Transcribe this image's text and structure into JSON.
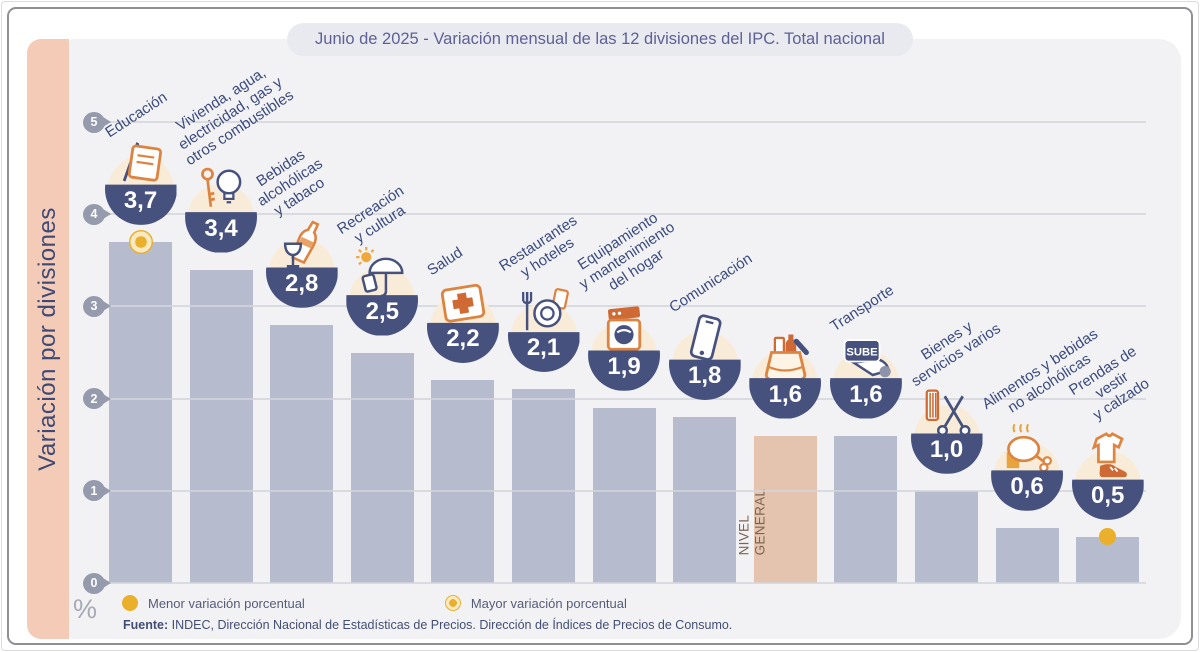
{
  "title": "Junio de 2025 - Variación mensual de las 12 divisiones del IPC. Total nacional",
  "sidebar": {
    "label": "Variación por divisiones"
  },
  "axis": {
    "ticks": [
      "5",
      "4",
      "3",
      "2",
      "1",
      "0"
    ],
    "unit_label": "%"
  },
  "legend": [
    {
      "marker": "solid-dot",
      "label": "Menor variación porcentual"
    },
    {
      "marker": "ring-dot",
      "label": "Mayor variación porcentual"
    }
  ],
  "source": {
    "prefix": "Fuente:",
    "text": " INDEC, Dirección Nacional de Estadísticas de Precios. Dirección de Índices de Precios de Consumo."
  },
  "colors": {
    "sidebar": "#f4cbb6",
    "chart_background": "#f2f2f5",
    "bar": "#b6bccd",
    "nivel_general_bar": "#e5c4af",
    "badge_bowl_navy": "#46517e",
    "label_navy": "#3b4b7e",
    "highlight_yellow": "#eaaf2b",
    "icon_orange": "#dd8440",
    "title_text": "#5f6096"
  },
  "chart_data": {
    "type": "bar",
    "title": "Junio de 2025 - Variación mensual de las 12 divisiones del IPC. Total nacional",
    "xlabel": "",
    "ylabel": "%",
    "ylim": [
      0,
      5
    ],
    "grid": true,
    "categories": [
      "Educación",
      "Vivienda, agua, electricidad, gas y otros combustibles",
      "Bebidas alcohólicas y tabaco",
      "Recreación y cultura",
      "Salud",
      "Restaurantes y hoteles",
      "Equipamiento y mantenimiento del hogar",
      "Comunicación",
      "Nivel general",
      "Transporte",
      "Bienes y servicios varios",
      "Alimentos y bebidas no alcohólicas",
      "Prendas de vestir y calzado"
    ],
    "values": [
      3.7,
      3.4,
      2.8,
      2.5,
      2.2,
      2.1,
      1.9,
      1.8,
      1.6,
      1.6,
      1.0,
      0.6,
      0.5
    ],
    "bars": [
      {
        "slug": "educacion",
        "label_lines": [
          "Educación"
        ],
        "value": 3.7,
        "display": "3,7",
        "icon": "notebook-pencil-icon",
        "marker": "mayor"
      },
      {
        "slug": "vivienda-agua-electricidad-gas",
        "label_lines": [
          "Vivienda, agua,",
          "electricidad, gas y",
          "otros combustibles"
        ],
        "value": 3.4,
        "display": "3,4",
        "icon": "lightbulb-key-icon",
        "marker": null
      },
      {
        "slug": "bebidas-alcoholicas-tabaco",
        "label_lines": [
          "Bebidas",
          "alcohólicas",
          "y tabaco"
        ],
        "value": 2.8,
        "display": "2,8",
        "icon": "wine-bottle-glass-icon",
        "marker": null
      },
      {
        "slug": "recreacion-cultura",
        "label_lines": [
          "Recreación",
          "y cultura"
        ],
        "value": 2.5,
        "display": "2,5",
        "icon": "umbrella-sun-icon",
        "marker": null
      },
      {
        "slug": "salud",
        "label_lines": [
          "Salud"
        ],
        "value": 2.2,
        "display": "2,2",
        "icon": "first-aid-kit-icon",
        "marker": null
      },
      {
        "slug": "restaurantes-hoteles",
        "label_lines": [
          "Restaurantes",
          "y hoteles"
        ],
        "value": 2.1,
        "display": "2,1",
        "icon": "fork-plate-icon",
        "marker": null
      },
      {
        "slug": "equipamiento-hogar",
        "label_lines": [
          "Equipamiento",
          "y mantenimiento",
          "del hogar"
        ],
        "value": 1.9,
        "display": "1,9",
        "icon": "washing-machine-icon",
        "marker": null
      },
      {
        "slug": "comunicacion",
        "label_lines": [
          "Comunicación"
        ],
        "value": 1.8,
        "display": "1,8",
        "icon": "smartphone-icon",
        "marker": null
      },
      {
        "slug": "nivel-general",
        "label_lines": [],
        "bar_text": "NIVEL\nGENERAL",
        "value": 1.6,
        "display": "1,6",
        "icon": "grocery-bag-icon",
        "marker": null,
        "highlight_bar": true
      },
      {
        "slug": "transporte",
        "label_lines": [
          "Transporte"
        ],
        "value": 1.6,
        "display": "1,6",
        "icon": "sube-card-icon",
        "marker": null
      },
      {
        "slug": "bienes-servicios-varios",
        "label_lines": [
          "Bienes y",
          "servicios varios"
        ],
        "value": 1.0,
        "display": "1,0",
        "icon": "comb-scissors-icon",
        "marker": null
      },
      {
        "slug": "alimentos-bebidas-no-alcoholicas",
        "label_lines": [
          "Alimentos y bebidas",
          "no alcohólicas"
        ],
        "value": 0.6,
        "display": "0,6",
        "icon": "chicken-food-icon",
        "marker": null
      },
      {
        "slug": "prendas-vestir-calzado",
        "label_lines": [
          "Prendas de vestir",
          "y calzado"
        ],
        "value": 0.5,
        "display": "0,5",
        "icon": "tshirt-shoe-icon",
        "marker": "menor"
      }
    ]
  }
}
